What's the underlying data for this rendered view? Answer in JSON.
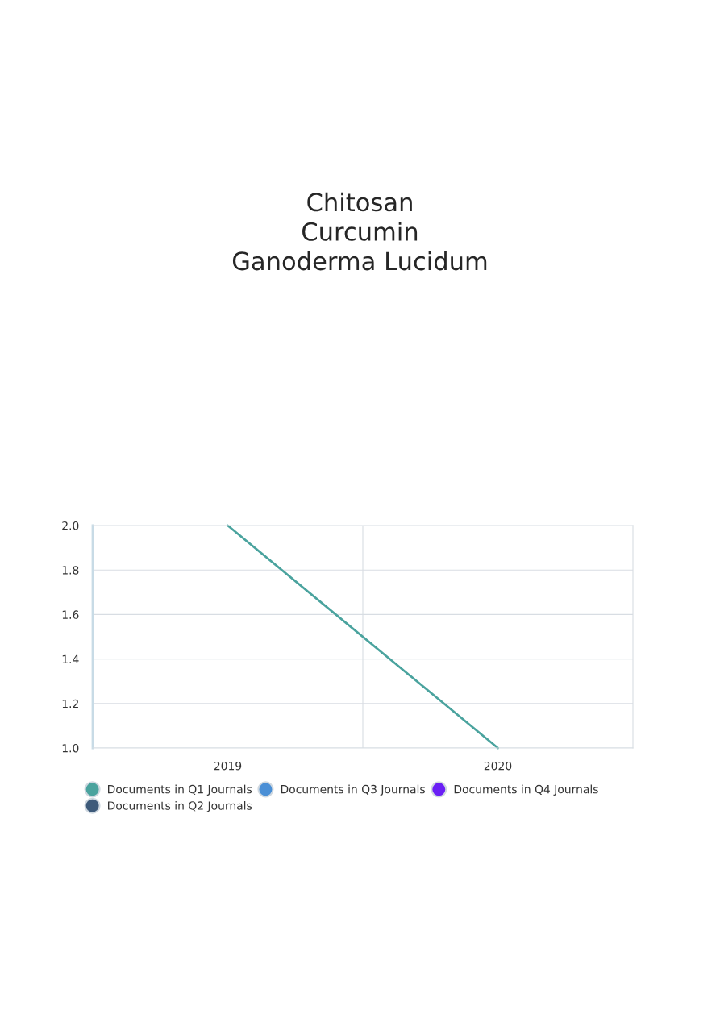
{
  "chart_data": {
    "type": "line",
    "title": "Chitosan\nCurcumin\nGanoderma Lucidum",
    "categories": [
      "2019",
      "2020"
    ],
    "series": [
      {
        "name": "Documents in Q1 Journals",
        "color": "#4aa39e",
        "values": [
          2.0,
          1.0
        ]
      },
      {
        "name": "Documents in Q2 Journals",
        "color": "#3d5a7a",
        "values": [
          null,
          null
        ]
      },
      {
        "name": "Documents in Q3 Journals",
        "color": "#4a8fd6",
        "values": [
          null,
          null
        ]
      },
      {
        "name": "Documents in Q4 Journals",
        "color": "#6a1ff5",
        "values": [
          null,
          null
        ]
      }
    ],
    "ylim": [
      1.0,
      2.0
    ],
    "yticks": [
      {
        "value": 1.0,
        "label": "1.0"
      },
      {
        "value": 1.2,
        "label": "1.2"
      },
      {
        "value": 1.4,
        "label": "1.4"
      },
      {
        "value": 1.6,
        "label": "1.6"
      },
      {
        "value": 1.8,
        "label": "1.8"
      },
      {
        "value": 2.0,
        "label": "2.0"
      }
    ],
    "grid": true,
    "legend": "bottom",
    "marker": "none",
    "line_style": "solid"
  }
}
